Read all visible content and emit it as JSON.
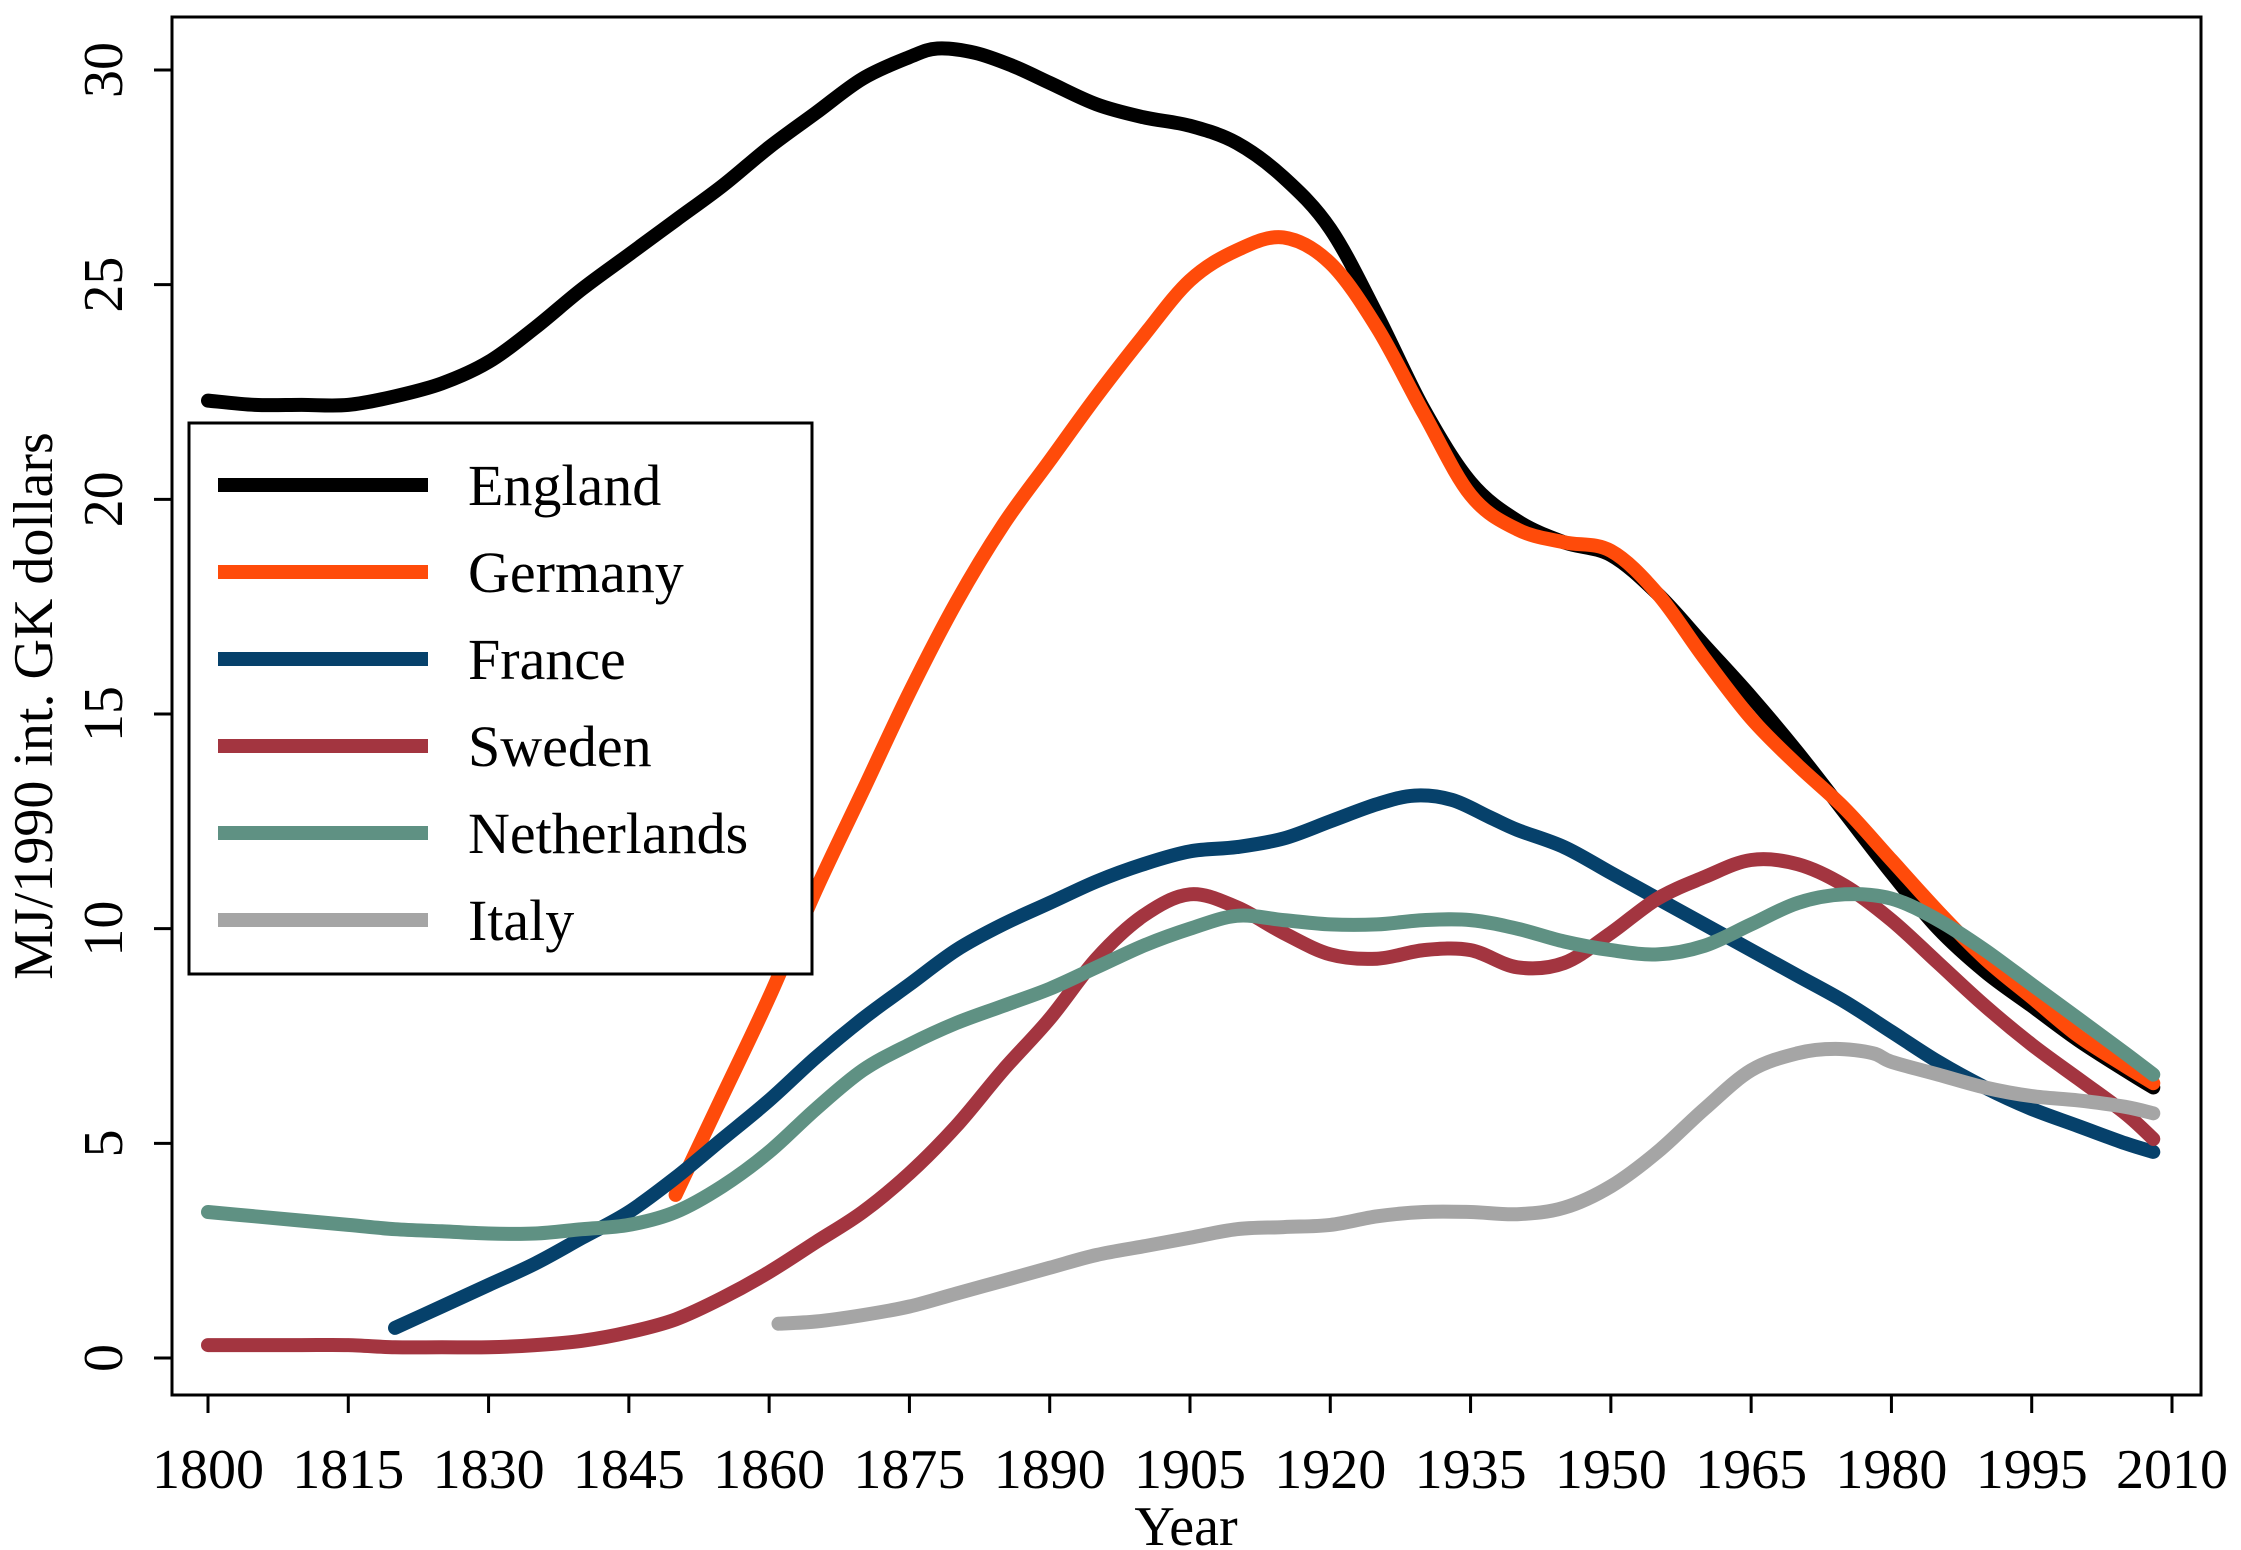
{
  "chart_data": {
    "type": "line",
    "title": "",
    "xlabel": "Year",
    "ylabel": "MJ/1990 int. GK dollars",
    "xlim": [
      1800,
      2010
    ],
    "ylim": [
      0,
      30
    ],
    "xticks": [
      1800,
      1815,
      1830,
      1845,
      1860,
      1875,
      1890,
      1905,
      1920,
      1935,
      1950,
      1965,
      1980,
      1995,
      2010
    ],
    "xtick_labels": [
      "1800",
      "1815",
      "1830",
      "1845",
      "1860",
      "1875",
      "1890",
      "1905",
      "1920",
      "1935",
      "1950",
      "1965",
      "1980",
      "1995",
      "2010"
    ],
    "yticks": [
      0,
      5,
      10,
      15,
      20,
      25,
      30
    ],
    "ytick_labels": [
      "0",
      "5",
      "10",
      "15",
      "20",
      "25",
      "30"
    ],
    "legend_position": "left-middle",
    "grid": false,
    "series": [
      {
        "name": "England",
        "color": "#000000",
        "points": [
          [
            1800,
            22.3
          ],
          [
            1805,
            22.2
          ],
          [
            1810,
            22.2
          ],
          [
            1815,
            22.2
          ],
          [
            1820,
            22.4
          ],
          [
            1825,
            22.7
          ],
          [
            1830,
            23.2
          ],
          [
            1835,
            24.0
          ],
          [
            1840,
            24.9
          ],
          [
            1845,
            25.7
          ],
          [
            1850,
            26.5
          ],
          [
            1855,
            27.3
          ],
          [
            1860,
            28.2
          ],
          [
            1865,
            29.0
          ],
          [
            1870,
            29.8
          ],
          [
            1875,
            30.3
          ],
          [
            1878,
            30.5
          ],
          [
            1882,
            30.4
          ],
          [
            1886,
            30.1
          ],
          [
            1890,
            29.7
          ],
          [
            1895,
            29.2
          ],
          [
            1900,
            28.9
          ],
          [
            1905,
            28.7
          ],
          [
            1910,
            28.3
          ],
          [
            1915,
            27.5
          ],
          [
            1920,
            26.3
          ],
          [
            1925,
            24.3
          ],
          [
            1930,
            22.1
          ],
          [
            1935,
            20.4
          ],
          [
            1940,
            19.5
          ],
          [
            1945,
            19.0
          ],
          [
            1950,
            18.7
          ],
          [
            1955,
            17.8
          ],
          [
            1960,
            16.6
          ],
          [
            1965,
            15.4
          ],
          [
            1970,
            14.1
          ],
          [
            1975,
            12.7
          ],
          [
            1980,
            11.3
          ],
          [
            1985,
            10.0
          ],
          [
            1990,
            9.0
          ],
          [
            1995,
            8.2
          ],
          [
            2000,
            7.4
          ],
          [
            2005,
            6.7
          ],
          [
            2008,
            6.3
          ]
        ]
      },
      {
        "name": "Germany",
        "color": "#ff4b0a",
        "points": [
          [
            1850,
            3.8
          ],
          [
            1855,
            6.1
          ],
          [
            1860,
            8.4
          ],
          [
            1865,
            10.9
          ],
          [
            1870,
            13.2
          ],
          [
            1875,
            15.5
          ],
          [
            1880,
            17.6
          ],
          [
            1885,
            19.4
          ],
          [
            1890,
            20.9
          ],
          [
            1895,
            22.4
          ],
          [
            1900,
            23.8
          ],
          [
            1905,
            25.1
          ],
          [
            1910,
            25.8
          ],
          [
            1915,
            26.1
          ],
          [
            1920,
            25.5
          ],
          [
            1925,
            24.0
          ],
          [
            1930,
            22.0
          ],
          [
            1935,
            20.1
          ],
          [
            1940,
            19.3
          ],
          [
            1945,
            19.0
          ],
          [
            1950,
            18.8
          ],
          [
            1955,
            17.8
          ],
          [
            1960,
            16.3
          ],
          [
            1965,
            14.9
          ],
          [
            1970,
            13.8
          ],
          [
            1975,
            12.8
          ],
          [
            1980,
            11.6
          ],
          [
            1985,
            10.4
          ],
          [
            1990,
            9.3
          ],
          [
            1995,
            8.4
          ],
          [
            2000,
            7.5
          ],
          [
            2005,
            6.8
          ],
          [
            2008,
            6.4
          ]
        ]
      },
      {
        "name": "France",
        "color": "#06416b",
        "points": [
          [
            1820,
            0.7
          ],
          [
            1825,
            1.2
          ],
          [
            1830,
            1.7
          ],
          [
            1835,
            2.2
          ],
          [
            1840,
            2.8
          ],
          [
            1845,
            3.4
          ],
          [
            1850,
            4.2
          ],
          [
            1855,
            5.1
          ],
          [
            1860,
            6.0
          ],
          [
            1865,
            7.0
          ],
          [
            1870,
            7.9
          ],
          [
            1875,
            8.7
          ],
          [
            1880,
            9.5
          ],
          [
            1885,
            10.1
          ],
          [
            1890,
            10.6
          ],
          [
            1895,
            11.1
          ],
          [
            1900,
            11.5
          ],
          [
            1905,
            11.8
          ],
          [
            1910,
            11.9
          ],
          [
            1915,
            12.1
          ],
          [
            1920,
            12.5
          ],
          [
            1925,
            12.9
          ],
          [
            1929,
            13.1
          ],
          [
            1933,
            13.0
          ],
          [
            1937,
            12.6
          ],
          [
            1940,
            12.3
          ],
          [
            1945,
            11.9
          ],
          [
            1950,
            11.3
          ],
          [
            1955,
            10.7
          ],
          [
            1960,
            10.1
          ],
          [
            1965,
            9.5
          ],
          [
            1970,
            8.9
          ],
          [
            1975,
            8.3
          ],
          [
            1980,
            7.6
          ],
          [
            1985,
            6.9
          ],
          [
            1990,
            6.3
          ],
          [
            1995,
            5.8
          ],
          [
            2000,
            5.4
          ],
          [
            2005,
            5.0
          ],
          [
            2008,
            4.8
          ]
        ]
      },
      {
        "name": "Sweden",
        "color": "#a33540",
        "points": [
          [
            1800,
            0.3
          ],
          [
            1805,
            0.3
          ],
          [
            1810,
            0.3
          ],
          [
            1815,
            0.3
          ],
          [
            1820,
            0.25
          ],
          [
            1825,
            0.25
          ],
          [
            1830,
            0.25
          ],
          [
            1835,
            0.3
          ],
          [
            1840,
            0.4
          ],
          [
            1845,
            0.6
          ],
          [
            1850,
            0.9
          ],
          [
            1855,
            1.4
          ],
          [
            1860,
            2.0
          ],
          [
            1865,
            2.7
          ],
          [
            1870,
            3.4
          ],
          [
            1875,
            4.3
          ],
          [
            1880,
            5.4
          ],
          [
            1885,
            6.7
          ],
          [
            1890,
            7.9
          ],
          [
            1895,
            9.3
          ],
          [
            1900,
            10.3
          ],
          [
            1905,
            10.8
          ],
          [
            1910,
            10.5
          ],
          [
            1915,
            9.9
          ],
          [
            1920,
            9.4
          ],
          [
            1925,
            9.3
          ],
          [
            1930,
            9.5
          ],
          [
            1935,
            9.5
          ],
          [
            1940,
            9.1
          ],
          [
            1945,
            9.2
          ],
          [
            1950,
            9.9
          ],
          [
            1955,
            10.7
          ],
          [
            1960,
            11.2
          ],
          [
            1965,
            11.6
          ],
          [
            1970,
            11.5
          ],
          [
            1975,
            11.0
          ],
          [
            1980,
            10.2
          ],
          [
            1985,
            9.2
          ],
          [
            1990,
            8.2
          ],
          [
            1995,
            7.3
          ],
          [
            2000,
            6.5
          ],
          [
            2005,
            5.7
          ],
          [
            2008,
            5.1
          ]
        ]
      },
      {
        "name": "Netherlands",
        "color": "#5f9183",
        "points": [
          [
            1800,
            3.4
          ],
          [
            1805,
            3.3
          ],
          [
            1810,
            3.2
          ],
          [
            1815,
            3.1
          ],
          [
            1820,
            3.0
          ],
          [
            1825,
            2.95
          ],
          [
            1830,
            2.9
          ],
          [
            1835,
            2.9
          ],
          [
            1840,
            3.0
          ],
          [
            1845,
            3.1
          ],
          [
            1850,
            3.4
          ],
          [
            1855,
            4.0
          ],
          [
            1860,
            4.8
          ],
          [
            1865,
            5.8
          ],
          [
            1870,
            6.7
          ],
          [
            1875,
            7.3
          ],
          [
            1880,
            7.8
          ],
          [
            1885,
            8.2
          ],
          [
            1890,
            8.6
          ],
          [
            1895,
            9.1
          ],
          [
            1900,
            9.6
          ],
          [
            1905,
            10.0
          ],
          [
            1910,
            10.3
          ],
          [
            1915,
            10.2
          ],
          [
            1920,
            10.1
          ],
          [
            1925,
            10.1
          ],
          [
            1930,
            10.2
          ],
          [
            1935,
            10.2
          ],
          [
            1940,
            10.0
          ],
          [
            1945,
            9.7
          ],
          [
            1950,
            9.5
          ],
          [
            1955,
            9.4
          ],
          [
            1960,
            9.6
          ],
          [
            1965,
            10.1
          ],
          [
            1970,
            10.6
          ],
          [
            1975,
            10.8
          ],
          [
            1980,
            10.7
          ],
          [
            1985,
            10.2
          ],
          [
            1990,
            9.5
          ],
          [
            1995,
            8.7
          ],
          [
            2000,
            7.9
          ],
          [
            2005,
            7.1
          ],
          [
            2008,
            6.6
          ]
        ]
      },
      {
        "name": "Italy",
        "color": "#a5a5a5",
        "points": [
          [
            1861,
            0.8
          ],
          [
            1865,
            0.85
          ],
          [
            1870,
            1.0
          ],
          [
            1875,
            1.2
          ],
          [
            1880,
            1.5
          ],
          [
            1885,
            1.8
          ],
          [
            1890,
            2.1
          ],
          [
            1895,
            2.4
          ],
          [
            1900,
            2.6
          ],
          [
            1905,
            2.8
          ],
          [
            1910,
            3.0
          ],
          [
            1915,
            3.05
          ],
          [
            1920,
            3.1
          ],
          [
            1925,
            3.3
          ],
          [
            1930,
            3.4
          ],
          [
            1935,
            3.4
          ],
          [
            1940,
            3.35
          ],
          [
            1945,
            3.5
          ],
          [
            1950,
            4.0
          ],
          [
            1955,
            4.8
          ],
          [
            1960,
            5.8
          ],
          [
            1965,
            6.7
          ],
          [
            1970,
            7.1
          ],
          [
            1974,
            7.2
          ],
          [
            1978,
            7.1
          ],
          [
            1980,
            6.9
          ],
          [
            1985,
            6.6
          ],
          [
            1990,
            6.3
          ],
          [
            1995,
            6.1
          ],
          [
            2000,
            6.0
          ],
          [
            2005,
            5.85
          ],
          [
            2008,
            5.7
          ]
        ]
      }
    ]
  }
}
